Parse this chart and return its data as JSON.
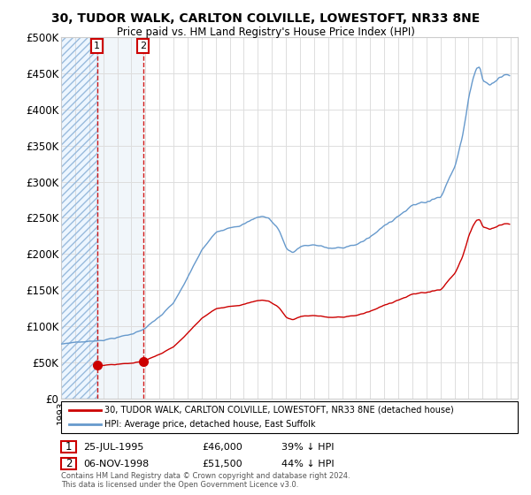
{
  "title": "30, TUDOR WALK, CARLTON COLVILLE, LOWESTOFT, NR33 8NE",
  "subtitle": "Price paid vs. HM Land Registry's House Price Index (HPI)",
  "legend_line1": "30, TUDOR WALK, CARLTON COLVILLE, LOWESTOFT, NR33 8NE (detached house)",
  "legend_line2": "HPI: Average price, detached house, East Suffolk",
  "footnote": "Contains HM Land Registry data © Crown copyright and database right 2024.\nThis data is licensed under the Open Government Licence v3.0.",
  "sale1_date": "25-JUL-1995",
  "sale1_price": 46000,
  "sale1_pct": "39% ↓ HPI",
  "sale1_label": "1",
  "sale2_date": "06-NOV-1998",
  "sale2_price": 51500,
  "sale2_pct": "44% ↓ HPI",
  "sale2_label": "2",
  "hpi_color": "#6699cc",
  "sale_color": "#cc0000",
  "ylim": [
    0,
    500000
  ],
  "yticks": [
    0,
    50000,
    100000,
    150000,
    200000,
    250000,
    300000,
    350000,
    400000,
    450000,
    500000
  ],
  "xlim_start": 1993.0,
  "xlim_end": 2025.5,
  "x_sale1": 1995.56,
  "x_sale2": 1998.84
}
